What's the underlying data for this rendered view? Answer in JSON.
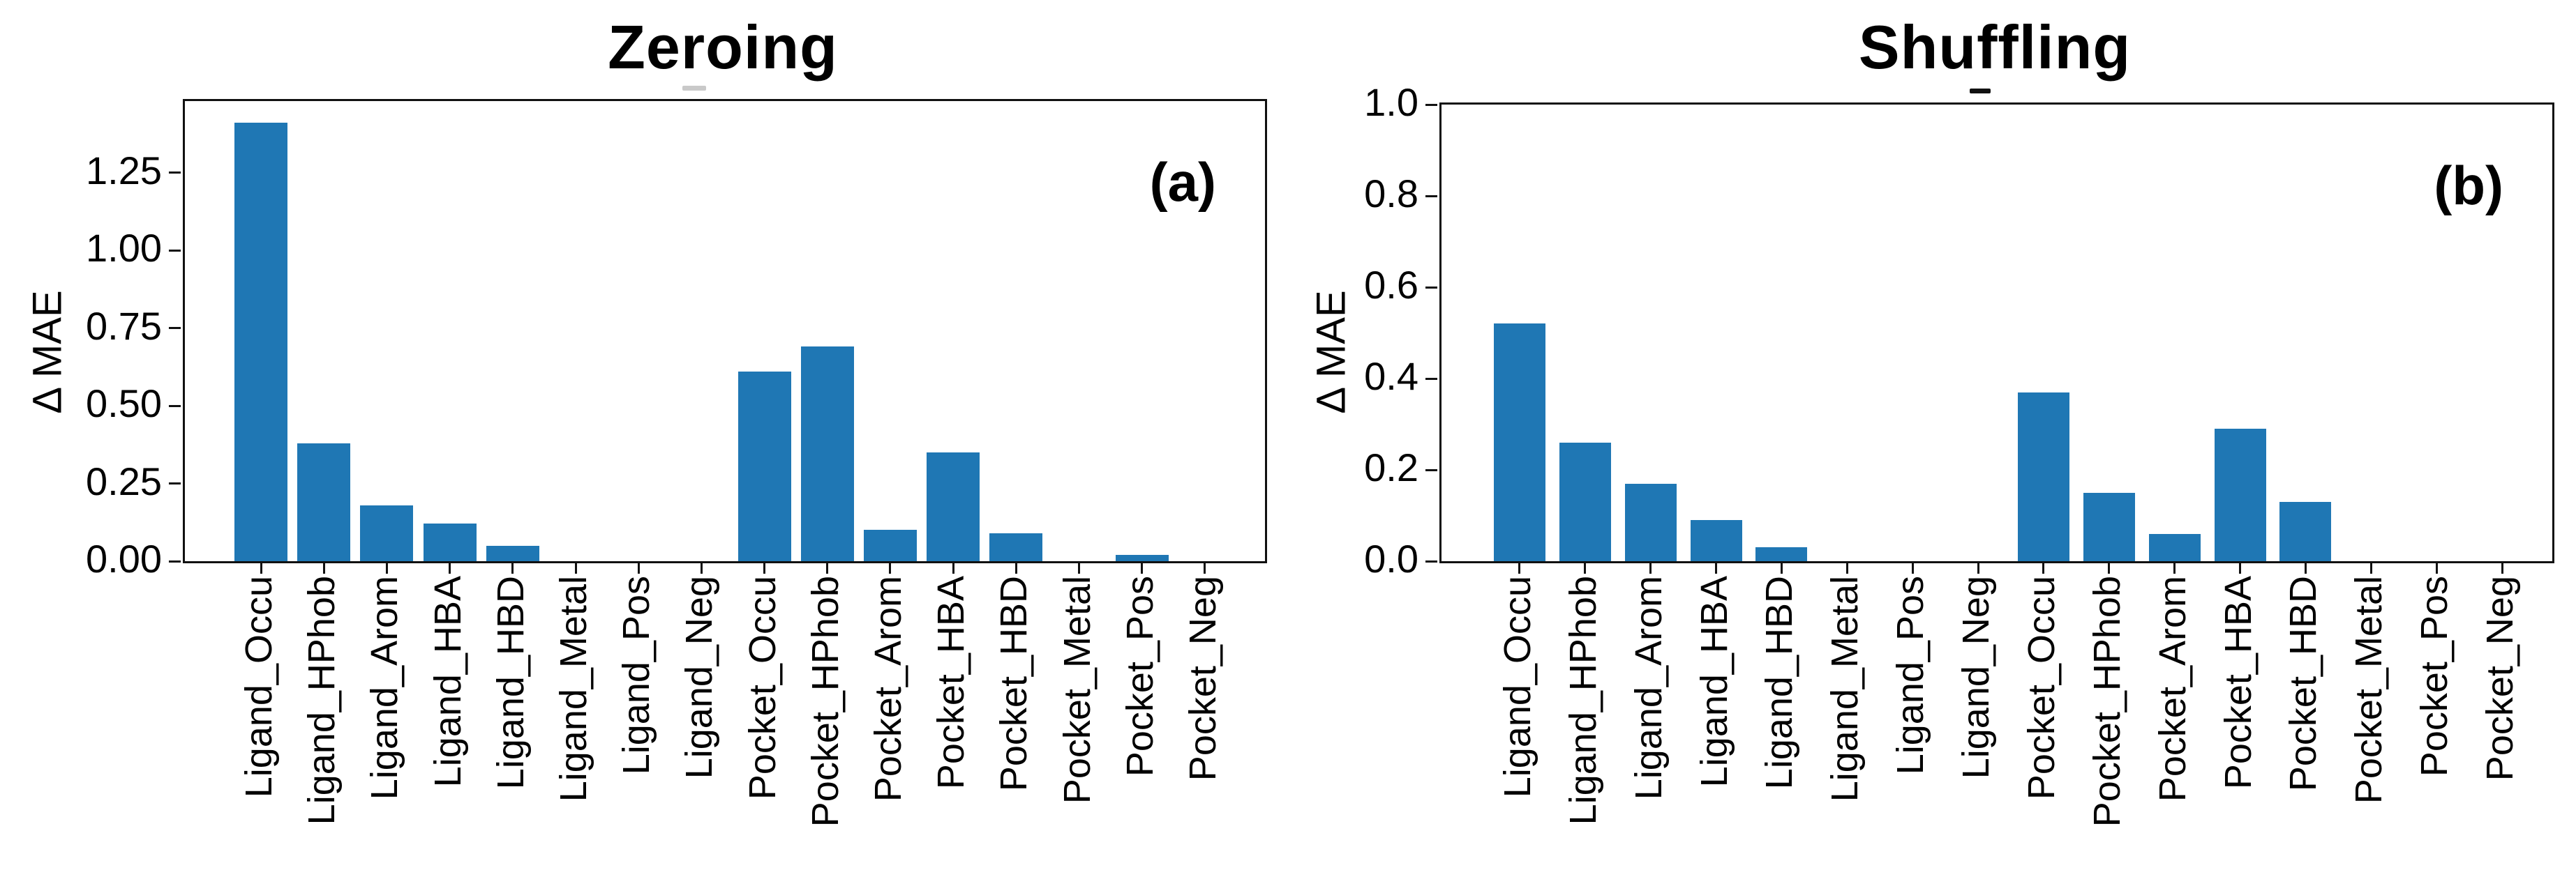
{
  "figure": {
    "background": "#ffffff"
  },
  "colors": {
    "bar": "#1f77b4",
    "axis": "#111111",
    "text": "#000000"
  },
  "chart_data": [
    {
      "type": "bar",
      "title": "Zeroing",
      "panel_label": "(a)",
      "ylabel": "Δ MAE",
      "ylim": [
        0,
        1.48
      ],
      "grid": false,
      "legend": null,
      "subtitle_mark": "-",
      "subtitle_mark_color": "#c9c9c9",
      "yticks": [
        {
          "value": 0.0,
          "label": "0.00"
        },
        {
          "value": 0.25,
          "label": "0.25"
        },
        {
          "value": 0.5,
          "label": "0.50"
        },
        {
          "value": 0.75,
          "label": "0.75"
        },
        {
          "value": 1.0,
          "label": "1.00"
        },
        {
          "value": 1.25,
          "label": "1.25"
        }
      ],
      "categories": [
        "Ligand_Occu",
        "Ligand_HPhob",
        "Ligand_Arom",
        "Ligand_HBA",
        "Ligand_HBD",
        "Ligand_Metal",
        "Ligand_Pos",
        "Ligand_Neg",
        "Pocket_Occu",
        "Pocket_HPhob",
        "Pocket_Arom",
        "Pocket_HBA",
        "Pocket_HBD",
        "Pocket_Metal",
        "Pocket_Pos",
        "Pocket_Neg"
      ],
      "values": [
        1.41,
        0.38,
        0.18,
        0.12,
        0.05,
        0.0,
        0.0,
        0.0,
        0.61,
        0.69,
        0.1,
        0.35,
        0.09,
        0.0,
        0.02,
        0.0
      ]
    },
    {
      "type": "bar",
      "title": "Shuffling",
      "panel_label": "(b)",
      "ylabel": "Δ MAE",
      "ylim": [
        0,
        1.0
      ],
      "grid": false,
      "legend": null,
      "subtitle_mark": "-",
      "subtitle_mark_color": "#111111",
      "yticks": [
        {
          "value": 0.0,
          "label": "0.0"
        },
        {
          "value": 0.2,
          "label": "0.2"
        },
        {
          "value": 0.4,
          "label": "0.4"
        },
        {
          "value": 0.6,
          "label": "0.6"
        },
        {
          "value": 0.8,
          "label": "0.8"
        },
        {
          "value": 1.0,
          "label": "1.0"
        }
      ],
      "categories": [
        "Ligand_Occu",
        "Ligand_HPhob",
        "Ligand_Arom",
        "Ligand_HBA",
        "Ligand_HBD",
        "Ligand_Metal",
        "Ligand_Pos",
        "Ligand_Neg",
        "Pocket_Occu",
        "Pocket_HPhob",
        "Pocket_Arom",
        "Pocket_HBA",
        "Pocket_HBD",
        "Pocket_Metal",
        "Pocket_Pos",
        "Pocket_Neg"
      ],
      "values": [
        0.52,
        0.26,
        0.17,
        0.09,
        0.03,
        0.0,
        0.0,
        0.0,
        0.37,
        0.15,
        0.06,
        0.29,
        0.13,
        0.0,
        0.0,
        0.0
      ]
    }
  ]
}
